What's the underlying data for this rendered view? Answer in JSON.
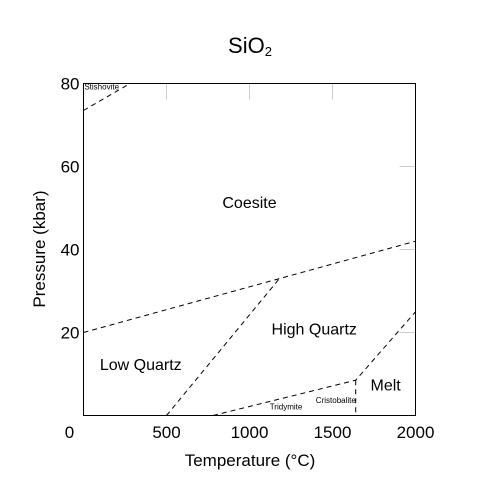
{
  "chart_data": {
    "type": "line",
    "title": "SiO",
    "title_subscript": "2",
    "xlabel": "Temperature (°C)",
    "ylabel": "Pressure (kbar)",
    "xlim": [
      0,
      2000
    ],
    "ylim": [
      0,
      80
    ],
    "x_tick_labels": [
      "0",
      "500",
      "1000",
      "1500",
      "2000"
    ],
    "x_ticks": [
      0,
      500,
      1000,
      1500,
      2000
    ],
    "y_tick_labels": [
      "20",
      "40",
      "60",
      "80"
    ],
    "y_ticks": [
      20,
      40,
      60,
      80
    ],
    "grid": false,
    "series": [
      {
        "points": [
          [
            0,
            73.5
          ],
          [
            280,
            80
          ]
        ]
      },
      {
        "points": [
          [
            0,
            20
          ],
          [
            1180,
            33
          ],
          [
            2000,
            42
          ]
        ]
      },
      {
        "points": [
          [
            500,
            0
          ],
          [
            1180,
            33
          ]
        ]
      },
      {
        "points": [
          [
            780,
            0
          ],
          [
            1640,
            8.5
          ],
          [
            2000,
            25
          ]
        ]
      },
      {
        "points": [
          [
            1640,
            8.5
          ],
          [
            1640,
            0
          ]
        ]
      }
    ],
    "annotations": [
      {
        "text": "Stishovite",
        "x": 5,
        "y": 78.5,
        "size": "small"
      },
      {
        "text": "Coesite",
        "x": 1000,
        "y": 50,
        "size": "large"
      },
      {
        "text": "High Quartz",
        "x": 1390,
        "y": 19.5,
        "size": "large"
      },
      {
        "text": "Low Quartz",
        "x": 345,
        "y": 11,
        "size": "large"
      },
      {
        "text": "Melt",
        "x": 1820,
        "y": 6,
        "size": "large"
      },
      {
        "text": "Cristobalite",
        "x": 1520,
        "y": 3,
        "size": "small"
      },
      {
        "text": "Tridymite",
        "x": 1220,
        "y": 1.5,
        "size": "small"
      }
    ]
  }
}
